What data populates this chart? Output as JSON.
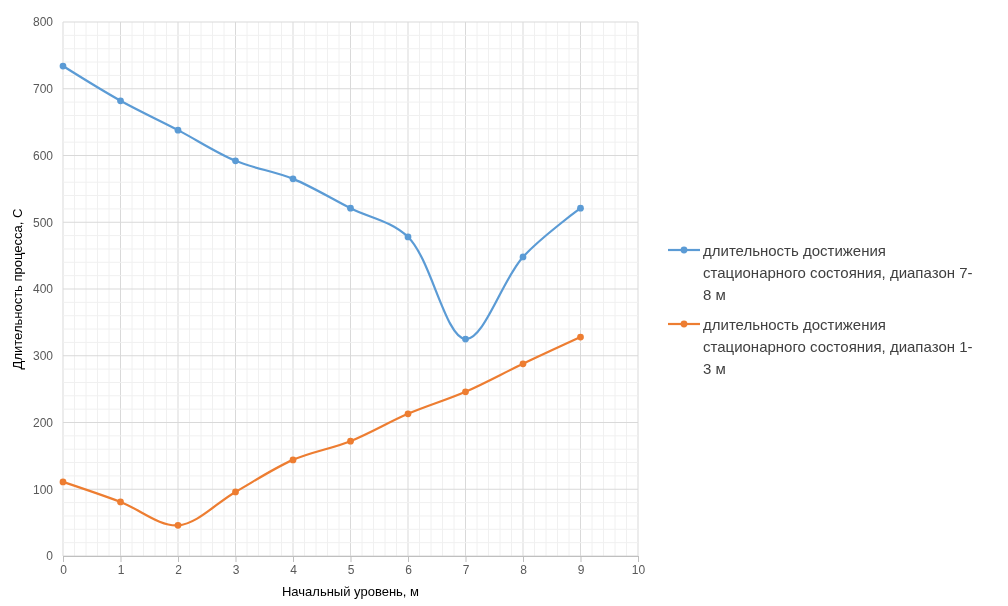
{
  "chart_data": {
    "type": "line",
    "xlabel": "Начальный уровень, м",
    "ylabel": "Длительность процесса, С",
    "x": [
      0,
      1,
      2,
      3,
      4,
      5,
      6,
      7,
      8,
      9
    ],
    "series": [
      {
        "name": "длительность достижения стационарного состояния, диапазон 7-8 м",
        "color": "#5b9bd5",
        "values": [
          734,
          682,
          638,
          592,
          565,
          521,
          478,
          325,
          448,
          521
        ]
      },
      {
        "name": "длительность достижения стационарного состояния, диапазон 1-3 м",
        "color": "#ed7d31",
        "values": [
          111,
          81,
          46,
          96,
          144,
          172,
          213,
          246,
          288,
          328
        ]
      }
    ],
    "xlim": [
      0,
      10
    ],
    "xticks": [
      0,
      1,
      2,
      3,
      4,
      5,
      6,
      7,
      8,
      9,
      10
    ],
    "ylim": [
      0,
      800
    ],
    "yticks": [
      0,
      100,
      200,
      300,
      400,
      500,
      600,
      700,
      800
    ],
    "grid": true,
    "legend": "right",
    "marker": "circle",
    "line_style": "solid"
  }
}
